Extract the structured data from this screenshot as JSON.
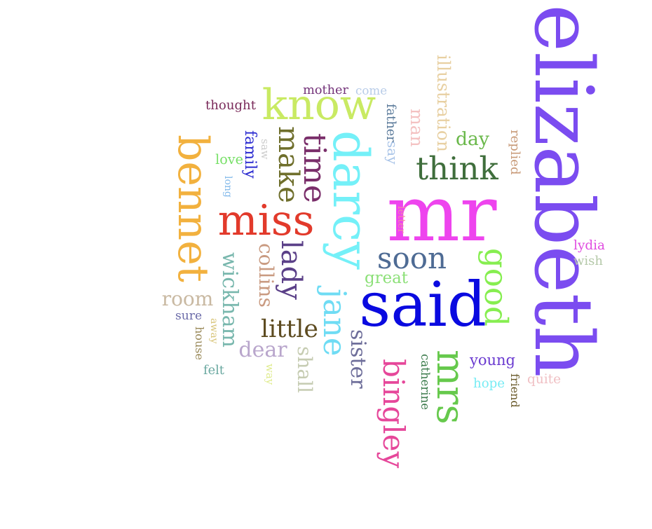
{
  "words": [
    {
      "text": "elizabeth",
      "color": "#7b4cf0"
    },
    {
      "text": "mr",
      "color": "#ee44ee"
    },
    {
      "text": "said",
      "color": "#0a0ae0"
    },
    {
      "text": "darcy",
      "color": "#74f0f8"
    },
    {
      "text": "miss",
      "color": "#e23a2b"
    },
    {
      "text": "bennet",
      "color": "#f2b13e"
    },
    {
      "text": "know",
      "color": "#c9ea63"
    },
    {
      "text": "think",
      "color": "#3f6e3c"
    },
    {
      "text": "mrs",
      "color": "#66c94c"
    },
    {
      "text": "bingley",
      "color": "#e6479a"
    },
    {
      "text": "jane",
      "color": "#6fdcf4"
    },
    {
      "text": "soon",
      "color": "#4e6b94"
    },
    {
      "text": "time",
      "color": "#7a2e6a"
    },
    {
      "text": "good",
      "color": "#86ee50"
    },
    {
      "text": "make",
      "color": "#6f6f2c"
    },
    {
      "text": "little",
      "color": "#5d4b20"
    },
    {
      "text": "lady",
      "color": "#5b4088"
    },
    {
      "text": "wickham",
      "color": "#78b7ad"
    },
    {
      "text": "collins",
      "color": "#c99a80"
    },
    {
      "text": "sister",
      "color": "#6e6e9a"
    },
    {
      "text": "dear",
      "color": "#b9a6cc"
    },
    {
      "text": "shall",
      "color": "#c6ccb2"
    },
    {
      "text": "room",
      "color": "#c9b9a2"
    },
    {
      "text": "illustration",
      "color": "#e8d0a2"
    },
    {
      "text": "man",
      "color": "#f4c2c2"
    },
    {
      "text": "say",
      "color": "#a9c4e8"
    },
    {
      "text": "father",
      "color": "#5a7a9a"
    },
    {
      "text": "family",
      "color": "#2a2ad0"
    },
    {
      "text": "day",
      "color": "#6ab84a"
    },
    {
      "text": "great",
      "color": "#8ce078"
    },
    {
      "text": "mother",
      "color": "#74347a"
    },
    {
      "text": "come",
      "color": "#b8cce8"
    },
    {
      "text": "thought",
      "color": "#7a2a5a"
    },
    {
      "text": "love",
      "color": "#78e068"
    },
    {
      "text": "long",
      "color": "#80b8ea"
    },
    {
      "text": "saw",
      "color": "#cccccc"
    },
    {
      "text": "letter",
      "color": "#f28aa8"
    },
    {
      "text": "replied",
      "color": "#c89a78"
    },
    {
      "text": "lydia",
      "color": "#e04ce0"
    },
    {
      "text": "wish",
      "color": "#b4c8a8"
    },
    {
      "text": "young",
      "color": "#6a3ad0"
    },
    {
      "text": "catherine",
      "color": "#3a7a4a"
    },
    {
      "text": "hope",
      "color": "#78ecf4"
    },
    {
      "text": "friend",
      "color": "#6a5a2a"
    },
    {
      "text": "quite",
      "color": "#f0c0c4"
    },
    {
      "text": "sure",
      "color": "#6a6aa8"
    },
    {
      "text": "away",
      "color": "#d8c478"
    },
    {
      "text": "house",
      "color": "#9a8a5a"
    },
    {
      "text": "felt",
      "color": "#6aa8a0"
    },
    {
      "text": "way",
      "color": "#e0ec90"
    }
  ]
}
